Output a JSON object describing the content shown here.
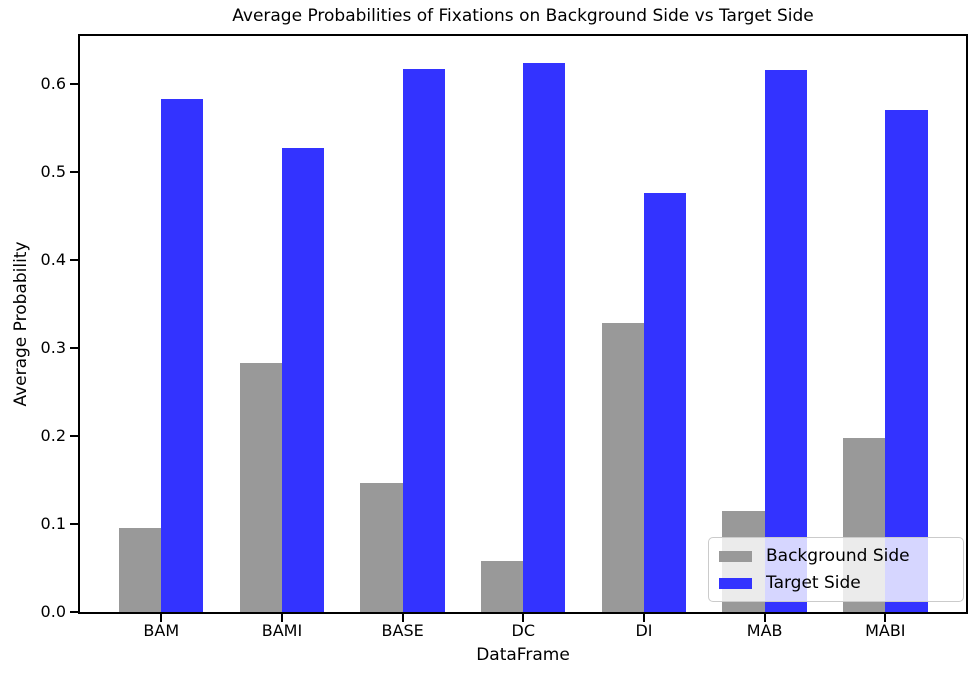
{
  "chart_data": {
    "type": "bar",
    "title": "Average Probabilities of Fixations on Background Side vs Target Side",
    "xlabel": "DataFrame",
    "ylabel": "Average Probability",
    "categories": [
      "BAM",
      "BAMI",
      "BASE",
      "DC",
      "DI",
      "MAB",
      "MABI"
    ],
    "series": [
      {
        "name": "Background Side",
        "color": "#999999",
        "values": [
          0.095,
          0.283,
          0.147,
          0.058,
          0.328,
          0.115,
          0.198
        ]
      },
      {
        "name": "Target Side",
        "color": "#3333ff",
        "values": [
          0.583,
          0.527,
          0.617,
          0.623,
          0.476,
          0.615,
          0.57
        ]
      }
    ],
    "ylim": [
      0,
      0.654
    ],
    "yticks": [
      "0.0",
      "0.1",
      "0.2",
      "0.3",
      "0.4",
      "0.5",
      "0.6"
    ],
    "grid": false,
    "legend_position": "lower right",
    "bar_width_fraction": 0.35,
    "background_color": "#ffffff",
    "spine_color": "#000000"
  }
}
